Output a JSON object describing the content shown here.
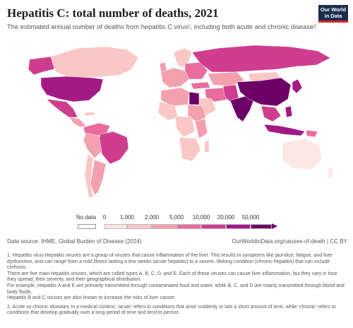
{
  "header": {
    "title": "Hepatitis C: total number of deaths, 2021",
    "subtitle": "The estimated annual number of deaths from hepatitis C virus¹, including both acute and chronic disease².",
    "logo_line1": "Our World",
    "logo_line2": "in Data"
  },
  "legend": {
    "no_data_label": "No data",
    "ticks": [
      "0",
      "1,000",
      "2,000",
      "5,000",
      "10,000",
      "20,000",
      "50,000"
    ],
    "colors": [
      "#fde7e4",
      "#f9c7c5",
      "#f3a0ae",
      "#e86c9e",
      "#cf3d8f",
      "#a21a84",
      "#6d0066"
    ]
  },
  "map": {
    "no_data_color": "#ffffff",
    "regions": [
      {
        "name": "Canada",
        "level": 1
      },
      {
        "name": "United States",
        "level": 5
      },
      {
        "name": "Mexico",
        "level": 4
      },
      {
        "name": "Brazil",
        "level": 4
      },
      {
        "name": "Russia",
        "level": 4
      },
      {
        "name": "China",
        "level": 6
      },
      {
        "name": "India",
        "level": 6
      },
      {
        "name": "Egypt",
        "level": 6
      },
      {
        "name": "Indonesia",
        "level": 5
      },
      {
        "name": "Australia",
        "level": 0
      }
    ]
  },
  "footer": {
    "source": "Data source: IHME, Global Burden of Disease (2024)",
    "link": "OurWorldinData.org/causes-of-death | CC BY"
  },
  "notes": {
    "p1": "1. Hepatitis virus Hepatitis viruses are a group of viruses that cause inflammation of the liver. This results in symptoms like jaundice, fatigue, and liver dysfunction, and can range from a mild illness lasting a few weeks (acute hepatitis) to a severe, lifelong condition (chronic hepatitis) that can include cirrhosis.",
    "p2": "There are five main hepatitis viruses, which are called types A, B, C, D, and E. Each of these viruses can cause liver inflammation, but they vary in how they spread, their severity, and their geographical distribution.",
    "p3": "For example, Hepatitis A and E are primarily transmitted through contaminated food and water, while B, C, and D are mainly transmitted through blood and body fluids.",
    "p4": "Hepatitis B and C viruses are also known to increase the risks of liver cancer.",
    "p5": "2. Acute vs chronic diseases In a medical context, ‘acute’ refers to conditions that arise suddenly or last a short amount of time, while ‘chronic’ refers to conditions that develop gradually over a long period of time and tend to persist."
  }
}
